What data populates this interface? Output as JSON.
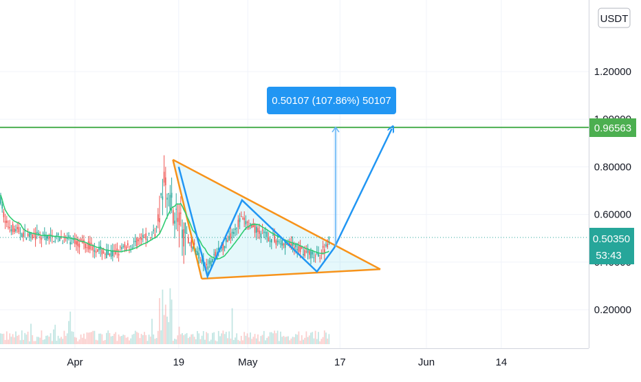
{
  "chart_data": {
    "type": "candlestick",
    "currency": "USDT",
    "y_ticks": [
      "1.20000",
      "1.00000",
      "0.80000",
      "0.60000",
      "0.40000",
      "0.20000"
    ],
    "y_tick_values": [
      1.2,
      1.0,
      0.8,
      0.6,
      0.4,
      0.2
    ],
    "x_ticks": [
      {
        "label": "Apr",
        "date": "2021-04-01"
      },
      {
        "label": "19",
        "date": "2021-04-19"
      },
      {
        "label": "May",
        "date": "2021-05-01"
      },
      {
        "label": "17",
        "date": "2021-05-17"
      },
      {
        "label": "Jun",
        "date": "2021-06-01"
      },
      {
        "label": "14",
        "date": "2021-06-14"
      }
    ],
    "ylim": [
      0.02,
      1.37
    ],
    "last_price": {
      "value": 0.5035,
      "label": "0.50350",
      "countdown": "53:43"
    },
    "horizontal_level": {
      "value": 0.96563,
      "label": "0.96563"
    },
    "measure_label": "0.50107 (107.86%) 50107",
    "pattern": {
      "type": "falling-wedge",
      "upper_line": [
        {
          "date": "2021-04-18",
          "price": 0.83
        },
        {
          "date": "2021-05-24",
          "price": 0.37
        }
      ],
      "lower_line": [
        {
          "date": "2021-04-23",
          "price": 0.33
        },
        {
          "date": "2021-05-24",
          "price": 0.37
        }
      ],
      "left_edge": [
        {
          "date": "2021-04-18",
          "price": 0.83
        },
        {
          "date": "2021-04-23",
          "price": 0.33
        }
      ]
    },
    "projection_path": [
      {
        "date": "2021-04-19",
        "price": 0.8
      },
      {
        "date": "2021-04-24",
        "price": 0.34
      },
      {
        "date": "2021-04-30",
        "price": 0.66
      },
      {
        "date": "2021-05-13",
        "price": 0.36
      },
      {
        "date": "2021-05-16",
        "price": 0.46
      },
      {
        "date": "2021-05-26",
        "price": 0.96
      }
    ],
    "measure_arrow": {
      "date": "2021-05-16",
      "from": 0.465,
      "to": 0.966
    },
    "colors": {
      "up": "#26a69a",
      "down": "#ef5350",
      "ma": "#2ecc71",
      "level": "#4caf50",
      "pattern": "#f7931a",
      "projection": "#2196f3",
      "measure": "#64b5f6",
      "label_bg": "#2196f3",
      "price_tag": "#26a69a"
    }
  }
}
